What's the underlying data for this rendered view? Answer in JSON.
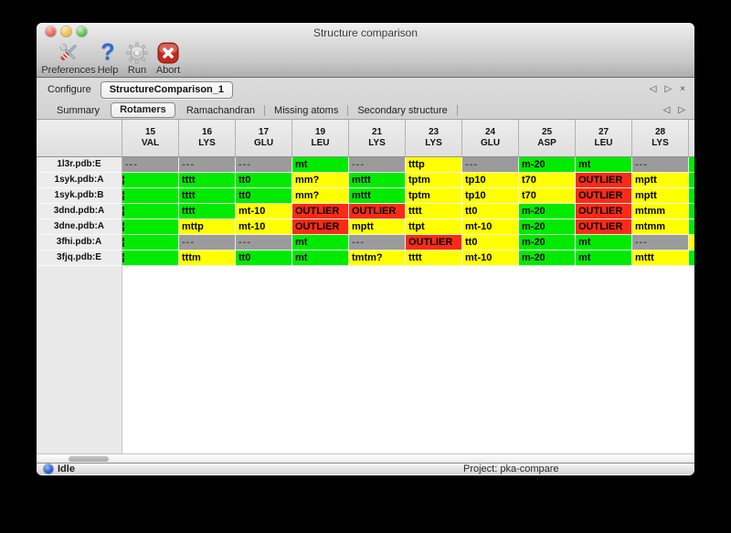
{
  "window": {
    "title": "Structure comparison"
  },
  "toolbar": {
    "buttons": [
      {
        "label": "Preferences",
        "icon": "tools-icon"
      },
      {
        "label": "Help",
        "icon": "question-mark-icon"
      },
      {
        "label": "Run",
        "icon": "gear-icon"
      },
      {
        "label": "Abort",
        "icon": "abort-x-icon"
      }
    ]
  },
  "configure_bar": {
    "label": "Configure",
    "active_tab": "StructureComparison_1",
    "nav_prev": "◁",
    "nav_next": "▷",
    "nav_close": "×"
  },
  "tab_bar": {
    "tabs": [
      {
        "label": "Summary",
        "selected": false
      },
      {
        "label": "Rotamers",
        "selected": true
      },
      {
        "label": "Ramachandran",
        "selected": false
      },
      {
        "label": "Missing atoms",
        "selected": false
      },
      {
        "label": "Secondary structure",
        "selected": false
      }
    ],
    "nav_prev": "◁",
    "nav_next": "▷"
  },
  "table": {
    "columns": [
      {
        "num": "15",
        "res": "VAL"
      },
      {
        "num": "16",
        "res": "LYS"
      },
      {
        "num": "17",
        "res": "GLU"
      },
      {
        "num": "19",
        "res": "LEU"
      },
      {
        "num": "21",
        "res": "LYS"
      },
      {
        "num": "23",
        "res": "LYS"
      },
      {
        "num": "24",
        "res": "GLU"
      },
      {
        "num": "25",
        "res": "ASP"
      },
      {
        "num": "27",
        "res": "LEU"
      },
      {
        "num": "28",
        "res": "LYS"
      }
    ],
    "rows": [
      {
        "label": "1l3r.pdb:E",
        "edge": "green",
        "cells": [
          {
            "text": "---",
            "status": "gray"
          },
          {
            "text": "---",
            "status": "gray"
          },
          {
            "text": "---",
            "status": "gray"
          },
          {
            "text": "mt",
            "status": "green"
          },
          {
            "text": "---",
            "status": "gray"
          },
          {
            "text": "tttp",
            "status": "yellow"
          },
          {
            "text": "---",
            "status": "gray"
          },
          {
            "text": "m-20",
            "status": "green"
          },
          {
            "text": "mt",
            "status": "green"
          },
          {
            "text": "---",
            "status": "gray"
          }
        ]
      },
      {
        "label": "1syk.pdb:A",
        "edge": "green",
        "cells": [
          {
            "text": "",
            "status": "green",
            "clipped": true
          },
          {
            "text": "tttt",
            "status": "green"
          },
          {
            "text": "tt0",
            "status": "green"
          },
          {
            "text": "mm?",
            "status": "yellow"
          },
          {
            "text": "mttt",
            "status": "green"
          },
          {
            "text": "tptm",
            "status": "yellow"
          },
          {
            "text": "tp10",
            "status": "yellow"
          },
          {
            "text": "t70",
            "status": "yellow"
          },
          {
            "text": "OUTLIER",
            "status": "red"
          },
          {
            "text": "mptt",
            "status": "yellow"
          }
        ]
      },
      {
        "label": "1syk.pdb:B",
        "edge": "green",
        "cells": [
          {
            "text": "",
            "status": "green",
            "clipped": true
          },
          {
            "text": "tttt",
            "status": "green"
          },
          {
            "text": "tt0",
            "status": "green"
          },
          {
            "text": "mm?",
            "status": "yellow"
          },
          {
            "text": "mttt",
            "status": "green"
          },
          {
            "text": "tptm",
            "status": "yellow"
          },
          {
            "text": "tp10",
            "status": "yellow"
          },
          {
            "text": "t70",
            "status": "yellow"
          },
          {
            "text": "OUTLIER",
            "status": "red"
          },
          {
            "text": "mptt",
            "status": "yellow"
          }
        ]
      },
      {
        "label": "3dnd.pdb:A",
        "edge": "green",
        "cells": [
          {
            "text": "",
            "status": "green",
            "clipped": true
          },
          {
            "text": "tttt",
            "status": "green"
          },
          {
            "text": "mt-10",
            "status": "yellow"
          },
          {
            "text": "OUTLIER",
            "status": "red"
          },
          {
            "text": "OUTLIER",
            "status": "red"
          },
          {
            "text": "tttt",
            "status": "yellow"
          },
          {
            "text": "tt0",
            "status": "yellow"
          },
          {
            "text": "m-20",
            "status": "green"
          },
          {
            "text": "OUTLIER",
            "status": "red"
          },
          {
            "text": "mtmm",
            "status": "yellow"
          }
        ]
      },
      {
        "label": "3dne.pdb:A",
        "edge": "green",
        "cells": [
          {
            "text": "",
            "status": "green",
            "clipped": true
          },
          {
            "text": "mttp",
            "status": "yellow"
          },
          {
            "text": "mt-10",
            "status": "yellow"
          },
          {
            "text": "OUTLIER",
            "status": "red"
          },
          {
            "text": "mptt",
            "status": "yellow"
          },
          {
            "text": "ttpt",
            "status": "yellow"
          },
          {
            "text": "mt-10",
            "status": "yellow"
          },
          {
            "text": "m-20",
            "status": "green"
          },
          {
            "text": "OUTLIER",
            "status": "red"
          },
          {
            "text": "mtmm",
            "status": "yellow"
          }
        ]
      },
      {
        "label": "3fhi.pdb:A",
        "edge": "yellow",
        "cells": [
          {
            "text": "",
            "status": "green",
            "clipped": true
          },
          {
            "text": "---",
            "status": "gray"
          },
          {
            "text": "---",
            "status": "gray"
          },
          {
            "text": "mt",
            "status": "green"
          },
          {
            "text": "---",
            "status": "gray"
          },
          {
            "text": "OUTLIER",
            "status": "red"
          },
          {
            "text": "tt0",
            "status": "yellow"
          },
          {
            "text": "m-20",
            "status": "green"
          },
          {
            "text": "mt",
            "status": "green"
          },
          {
            "text": "---",
            "status": "gray"
          }
        ]
      },
      {
        "label": "3fjq.pdb:E",
        "edge": "green",
        "cells": [
          {
            "text": "",
            "status": "green",
            "clipped": true
          },
          {
            "text": "tttm",
            "status": "yellow"
          },
          {
            "text": "tt0",
            "status": "green"
          },
          {
            "text": "mt",
            "status": "green"
          },
          {
            "text": "tmtm?",
            "status": "yellow"
          },
          {
            "text": "tttt",
            "status": "yellow"
          },
          {
            "text": "mt-10",
            "status": "yellow"
          },
          {
            "text": "m-20",
            "status": "green"
          },
          {
            "text": "mt",
            "status": "green"
          },
          {
            "text": "mttt",
            "status": "yellow"
          }
        ]
      }
    ]
  },
  "status_bar": {
    "status": "Idle",
    "project": "Project: pka-compare"
  },
  "colors": {
    "green": "#00eb00",
    "yellow": "#ffff00",
    "red": "#fa2b16",
    "gray": "#9b9b9b"
  }
}
